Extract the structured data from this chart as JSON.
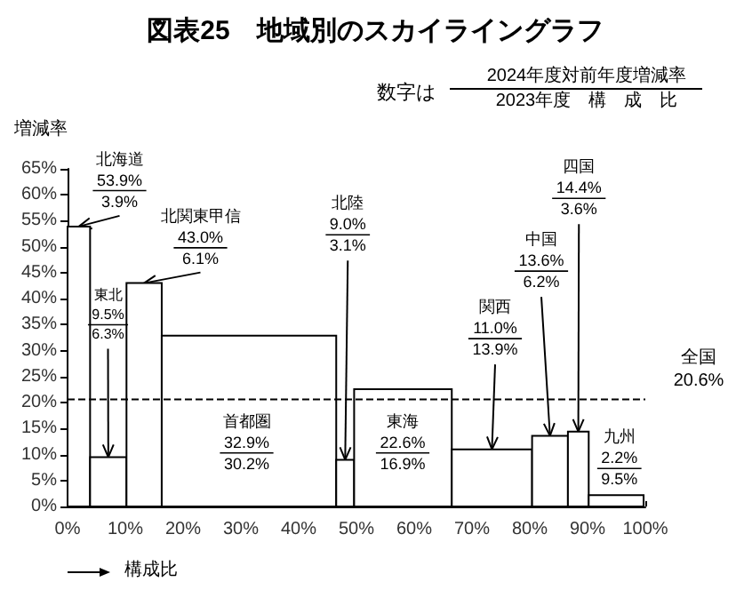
{
  "chart_data": {
    "type": "histogram",
    "title": "図表25　地域別のスカイライングラフ",
    "xlabel": "構成比",
    "ylabel": "増減率",
    "color": "#000000",
    "bins": [
      0,
      3.9,
      10.2,
      16.3,
      46.5,
      49.6,
      66.5,
      80.4,
      86.6,
      90.2,
      99.7
    ],
    "values": [
      53.9,
      9.5,
      43.0,
      32.9,
      9.0,
      22.6,
      11.0,
      13.6,
      14.4,
      2.2
    ],
    "xlim": [
      0,
      100
    ],
    "xticks": [
      {
        "value": 0,
        "label": "0%"
      },
      {
        "value": 10,
        "label": "10%"
      },
      {
        "value": 20,
        "label": "20%"
      },
      {
        "value": 30,
        "label": "30%"
      },
      {
        "value": 40,
        "label": "40%"
      },
      {
        "value": 50,
        "label": "50%"
      },
      {
        "value": 60,
        "label": "60%"
      },
      {
        "value": 70,
        "label": "70%"
      },
      {
        "value": 80,
        "label": "80%"
      },
      {
        "value": 90,
        "label": "90%"
      },
      {
        "value": 100,
        "label": "100%"
      }
    ],
    "ylim": [
      0,
      65
    ],
    "yticks": [
      {
        "value": 0,
        "label": "0%"
      },
      {
        "value": 5,
        "label": "5%"
      },
      {
        "value": 10,
        "label": "10%"
      },
      {
        "value": 15,
        "label": "15%"
      },
      {
        "value": 20,
        "label": "20%"
      },
      {
        "value": 25,
        "label": "25%"
      },
      {
        "value": 30,
        "label": "30%"
      },
      {
        "value": 35,
        "label": "35%"
      },
      {
        "value": 40,
        "label": "40%"
      },
      {
        "value": 45,
        "label": "45%"
      },
      {
        "value": 50,
        "label": "50%"
      },
      {
        "value": 55,
        "label": "55%"
      },
      {
        "value": 60,
        "label": "60%"
      },
      {
        "value": 65,
        "label": "65%"
      }
    ],
    "ref_lines": [
      {
        "axis": "y",
        "value": 20.6,
        "label": "全国\n20.6%",
        "line_style": "dashed"
      }
    ],
    "annotations": [
      "数字は",
      "2024年度対前年度増減率",
      "2023年度　構　成　比",
      {
        "text": "北海道\n53.9%\n3.9%",
        "x": 1.95,
        "y": 53.9
      },
      {
        "text": "東北\n9.5%\n6.3%",
        "x": 7.05,
        "y": 9.5
      },
      {
        "text": "北関東甲信\n43.0%\n6.1%",
        "x": 13.25,
        "y": 43.0
      },
      "首都圏\n32.9%\n30.2%",
      {
        "text": "北陸\n9.0%\n3.1%",
        "x": 48.05,
        "y": 9.0
      },
      "東海\n22.6%\n16.9%",
      {
        "text": "関西\n11.0%\n13.9%",
        "x": 73.45,
        "y": 11.0
      },
      {
        "text": "中国\n13.6%\n6.2%",
        "x": 83.5,
        "y": 13.6
      },
      {
        "text": "四国\n14.4%\n3.6%",
        "x": 88.4,
        "y": 14.4
      },
      "九州\n2.2%\n9.5%"
    ]
  }
}
